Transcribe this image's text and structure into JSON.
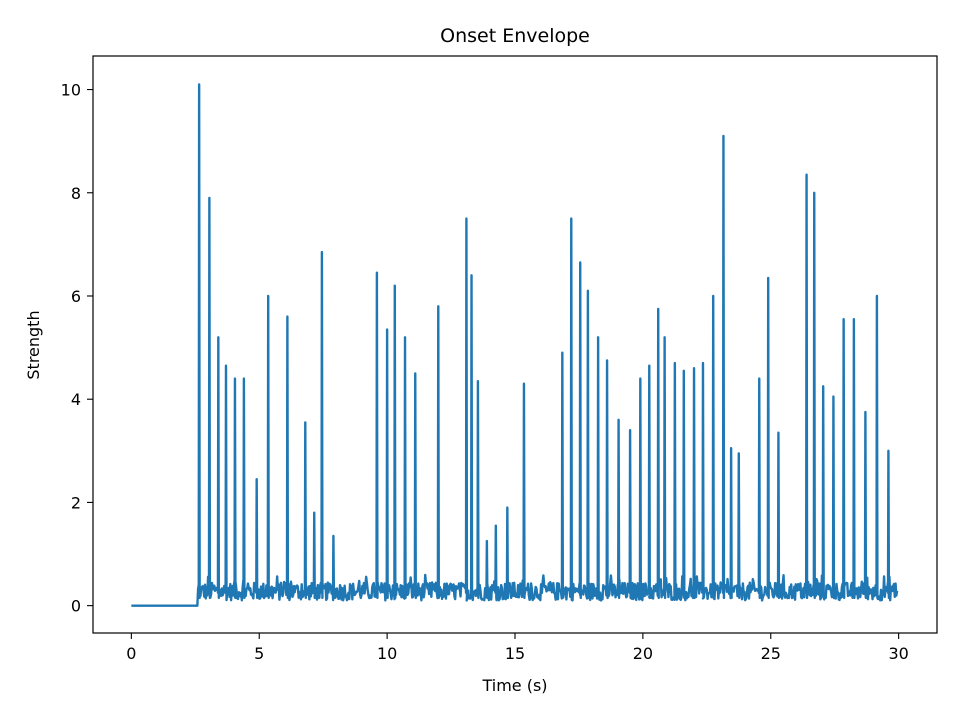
{
  "chart_data": {
    "type": "line",
    "title": "Onset Envelope",
    "xlabel": "Time (s)",
    "ylabel": "Strength",
    "xlim": [
      -1.5,
      31.5
    ],
    "ylim": [
      -0.53,
      10.65
    ],
    "x_ticks": [
      0,
      5,
      10,
      15,
      20,
      25,
      30
    ],
    "y_ticks": [
      0,
      2,
      4,
      6,
      8,
      10
    ],
    "x_tick_labels": [
      "0",
      "5",
      "10",
      "15",
      "20",
      "25",
      "30"
    ],
    "y_tick_labels": [
      "0",
      "2",
      "4",
      "6",
      "8",
      "10"
    ],
    "grid": false,
    "legend": "none",
    "line_color": "#1f77b4",
    "series": [
      {
        "x_start": 0,
        "x_end": 29.95,
        "silent_until": 2.6,
        "baseline_range": [
          0.1,
          0.6
        ],
        "peaks": [
          {
            "t": 2.65,
            "v": 10.1
          },
          {
            "t": 3.05,
            "v": 7.9
          },
          {
            "t": 3.4,
            "v": 5.2
          },
          {
            "t": 3.7,
            "v": 4.65
          },
          {
            "t": 4.05,
            "v": 4.4
          },
          {
            "t": 4.4,
            "v": 4.4
          },
          {
            "t": 4.9,
            "v": 2.45
          },
          {
            "t": 5.35,
            "v": 6.0
          },
          {
            "t": 6.1,
            "v": 5.6
          },
          {
            "t": 6.8,
            "v": 3.55
          },
          {
            "t": 7.15,
            "v": 1.8
          },
          {
            "t": 7.45,
            "v": 6.85
          },
          {
            "t": 7.9,
            "v": 1.35
          },
          {
            "t": 9.6,
            "v": 6.45
          },
          {
            "t": 10.0,
            "v": 5.35
          },
          {
            "t": 10.3,
            "v": 6.2
          },
          {
            "t": 10.7,
            "v": 5.2
          },
          {
            "t": 11.1,
            "v": 4.5
          },
          {
            "t": 12.0,
            "v": 5.8
          },
          {
            "t": 13.1,
            "v": 7.5
          },
          {
            "t": 13.3,
            "v": 6.4
          },
          {
            "t": 13.55,
            "v": 4.35
          },
          {
            "t": 13.9,
            "v": 1.25
          },
          {
            "t": 14.25,
            "v": 1.55
          },
          {
            "t": 14.7,
            "v": 1.9
          },
          {
            "t": 15.35,
            "v": 4.3
          },
          {
            "t": 16.85,
            "v": 4.9
          },
          {
            "t": 17.2,
            "v": 7.5
          },
          {
            "t": 17.55,
            "v": 6.65
          },
          {
            "t": 17.85,
            "v": 6.1
          },
          {
            "t": 18.25,
            "v": 5.2
          },
          {
            "t": 18.6,
            "v": 4.75
          },
          {
            "t": 19.05,
            "v": 3.6
          },
          {
            "t": 19.5,
            "v": 3.4
          },
          {
            "t": 19.9,
            "v": 4.4
          },
          {
            "t": 20.25,
            "v": 4.65
          },
          {
            "t": 20.6,
            "v": 5.75
          },
          {
            "t": 20.85,
            "v": 5.2
          },
          {
            "t": 21.25,
            "v": 4.7
          },
          {
            "t": 21.6,
            "v": 4.55
          },
          {
            "t": 22.0,
            "v": 4.6
          },
          {
            "t": 22.35,
            "v": 4.7
          },
          {
            "t": 22.75,
            "v": 6.0
          },
          {
            "t": 23.15,
            "v": 9.1
          },
          {
            "t": 23.45,
            "v": 3.05
          },
          {
            "t": 23.75,
            "v": 2.95
          },
          {
            "t": 24.55,
            "v": 4.4
          },
          {
            "t": 24.9,
            "v": 6.35
          },
          {
            "t": 25.3,
            "v": 3.35
          },
          {
            "t": 26.4,
            "v": 8.35
          },
          {
            "t": 26.7,
            "v": 8.0
          },
          {
            "t": 27.05,
            "v": 4.25
          },
          {
            "t": 27.45,
            "v": 4.05
          },
          {
            "t": 27.85,
            "v": 5.55
          },
          {
            "t": 28.25,
            "v": 5.55
          },
          {
            "t": 28.7,
            "v": 3.75
          },
          {
            "t": 29.15,
            "v": 6.0
          },
          {
            "t": 29.6,
            "v": 3.0
          }
        ]
      }
    ]
  }
}
